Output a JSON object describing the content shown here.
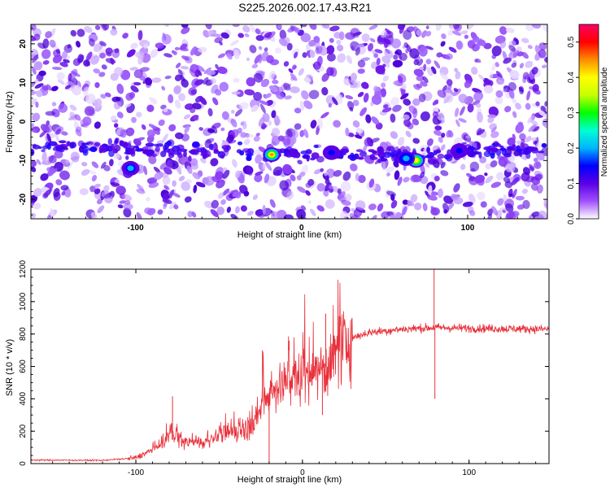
{
  "figure_title": "S225.2026.002.17.43.R21",
  "chart_data": [
    {
      "type": "heatmap",
      "title": "S225.2026.002.17.43.R21",
      "xlabel": "Height of straight line (km)",
      "ylabel": "Frequency (Hz)",
      "xlim": [
        -163,
        148
      ],
      "ylim": [
        -25,
        25
      ],
      "x_ticks": [
        -100,
        0,
        100
      ],
      "y_ticks": [
        -20,
        -10,
        0,
        10,
        20
      ],
      "grid": false,
      "colorbar": {
        "label": "Normalized spectral amplitude",
        "range": [
          0,
          0.55
        ],
        "ticks": [
          0.0,
          0.1,
          0.2,
          0.3,
          0.4,
          0.5
        ],
        "colors": [
          "#ffffff",
          "#a050ff",
          "#5a00e6",
          "#0000ff",
          "#00b4ff",
          "#00ffd2",
          "#00ff00",
          "#c8ff00",
          "#ffff00",
          "#ff8c00",
          "#ff0000",
          "#ff0064"
        ]
      },
      "features": {
        "signal_track": [
          {
            "x": -150,
            "y": -6.5
          },
          {
            "x": -100,
            "y": -7.0
          },
          {
            "x": -60,
            "y": -7.5
          },
          {
            "x": -20,
            "y": -8.5
          },
          {
            "x": 0,
            "y": -8.0
          },
          {
            "x": 40,
            "y": -8.0
          },
          {
            "x": 70,
            "y": -9.5
          },
          {
            "x": 100,
            "y": -7.5
          },
          {
            "x": 145,
            "y": -7.0
          }
        ],
        "hotspots": [
          {
            "x": -18,
            "y": -8.5,
            "amplitude": 0.45
          },
          {
            "x": 69,
            "y": -10.0,
            "amplitude": 0.42
          },
          {
            "x": -103,
            "y": -12.0,
            "amplitude": 0.2
          },
          {
            "x": 63,
            "y": -9.5,
            "amplitude": 0.22
          },
          {
            "x": 18,
            "y": -8.0,
            "amplitude": 0.15
          },
          {
            "x": 95,
            "y": -7.5,
            "amplitude": 0.14
          }
        ]
      }
    },
    {
      "type": "line",
      "xlabel": "Height of straight line (km)",
      "ylabel": "SNR (10 * v/v)",
      "xlim": [
        -163,
        148
      ],
      "ylim": [
        0,
        1200
      ],
      "x_ticks": [
        -100,
        0,
        100
      ],
      "y_ticks": [
        0,
        200,
        400,
        600,
        800,
        1000,
        1200
      ],
      "grid": false,
      "series_color": "#e8303a",
      "trend": [
        {
          "x": -163,
          "y": 22
        },
        {
          "x": -120,
          "y": 20
        },
        {
          "x": -100,
          "y": 35
        },
        {
          "x": -85,
          "y": 110
        },
        {
          "x": -78,
          "y": 190
        },
        {
          "x": -72,
          "y": 130
        },
        {
          "x": -60,
          "y": 130
        },
        {
          "x": -45,
          "y": 190
        },
        {
          "x": -28,
          "y": 230
        },
        {
          "x": -23,
          "y": 420
        },
        {
          "x": -15,
          "y": 470
        },
        {
          "x": -5,
          "y": 520
        },
        {
          "x": 5,
          "y": 570
        },
        {
          "x": 12,
          "y": 590
        },
        {
          "x": 16,
          "y": 600
        },
        {
          "x": 22,
          "y": 700
        },
        {
          "x": 28,
          "y": 770
        },
        {
          "x": 40,
          "y": 810
        },
        {
          "x": 60,
          "y": 830
        },
        {
          "x": 80,
          "y": 840
        },
        {
          "x": 100,
          "y": 835
        },
        {
          "x": 148,
          "y": 830
        }
      ],
      "spikes": [
        {
          "x": -78,
          "y": 415
        },
        {
          "x": -24,
          "y": 700
        },
        {
          "x": -20,
          "y": 10
        },
        {
          "x": 12,
          "y": 300
        },
        {
          "x": 14,
          "y": 925
        },
        {
          "x": 79,
          "y": 1200
        },
        {
          "x": 79.5,
          "y": 400
        }
      ]
    }
  ]
}
